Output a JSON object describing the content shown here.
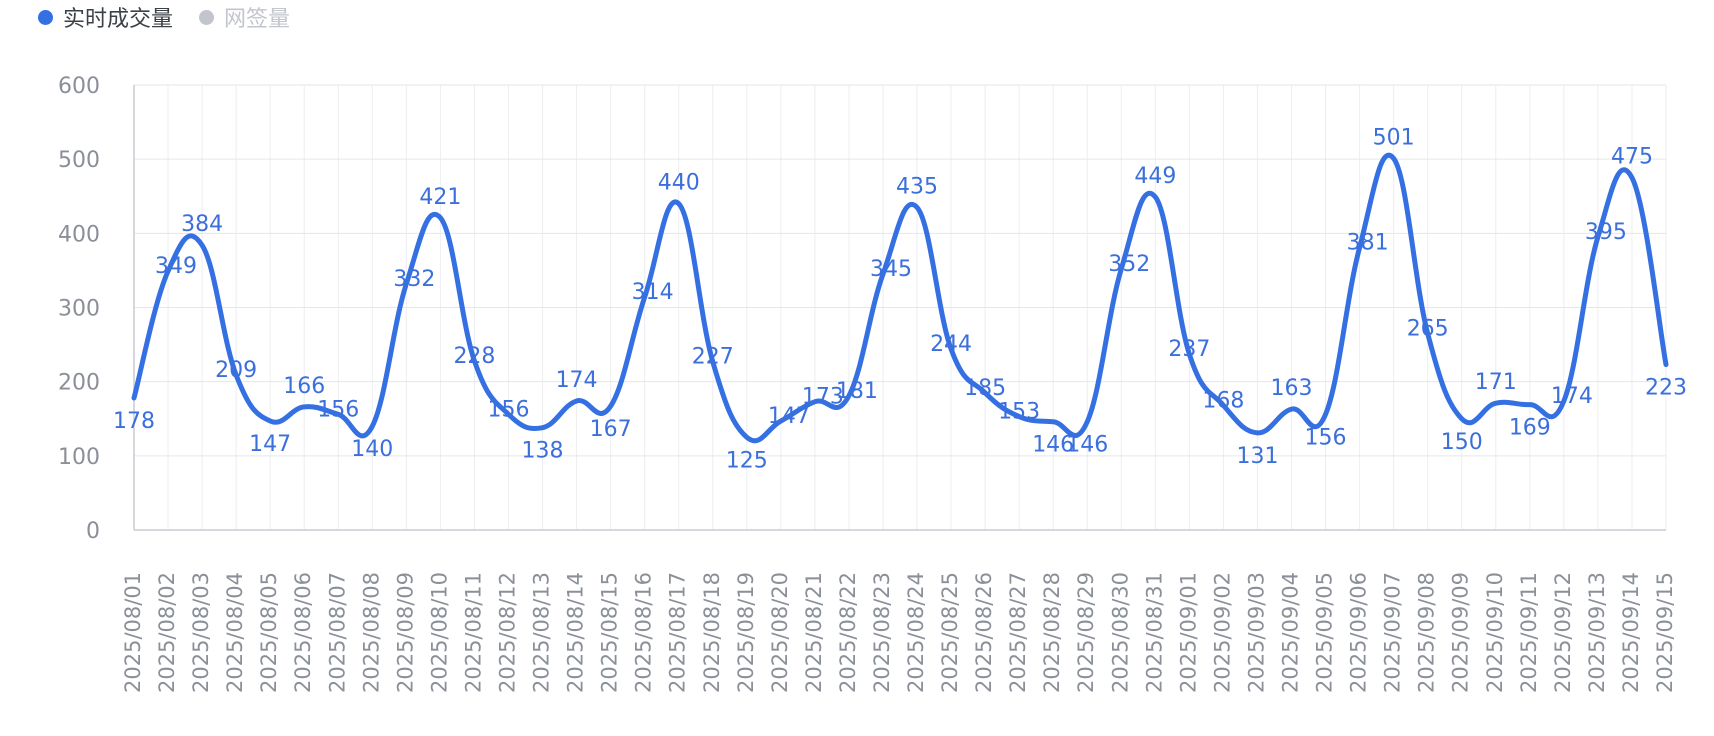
{
  "legend": {
    "items": [
      {
        "label": "实时成交量",
        "color": "#3570e3",
        "active": true
      },
      {
        "label": "网签量",
        "color": "#c2c5cc",
        "active": false
      }
    ]
  },
  "chart_data": {
    "type": "line",
    "smooth": true,
    "grid": true,
    "legend_position": "top-left",
    "color": "#3570e3",
    "ylim": [
      0,
      600
    ],
    "yticks": [
      0,
      100,
      200,
      300,
      400,
      500,
      600
    ],
    "categories": [
      "2025/08/01",
      "2025/08/02",
      "2025/08/03",
      "2025/08/04",
      "2025/08/05",
      "2025/08/06",
      "2025/08/07",
      "2025/08/08",
      "2025/08/09",
      "2025/08/10",
      "2025/08/11",
      "2025/08/12",
      "2025/08/13",
      "2025/08/14",
      "2025/08/15",
      "2025/08/16",
      "2025/08/17",
      "2025/08/18",
      "2025/08/19",
      "2025/08/20",
      "2025/08/21",
      "2025/08/22",
      "2025/08/23",
      "2025/08/24",
      "2025/08/25",
      "2025/08/26",
      "2025/08/27",
      "2025/08/28",
      "2025/08/29",
      "2025/08/30",
      "2025/08/31",
      "2025/09/01",
      "2025/09/02",
      "2025/09/03",
      "2025/09/04",
      "2025/09/05",
      "2025/09/06",
      "2025/09/07",
      "2025/09/08",
      "2025/09/09",
      "2025/09/10",
      "2025/09/11",
      "2025/09/12",
      "2025/09/13",
      "2025/09/14",
      "2025/09/15"
    ],
    "series": [
      {
        "name": "实时成交量",
        "values": [
          178,
          349,
          384,
          209,
          147,
          166,
          156,
          140,
          332,
          421,
          228,
          156,
          138,
          174,
          167,
          314,
          440,
          227,
          125,
          147,
          173,
          181,
          345,
          435,
          244,
          185,
          153,
          146,
          146,
          352,
          449,
          237,
          168,
          131,
          163,
          156,
          381,
          501,
          265,
          150,
          171,
          169,
          174,
          395,
          475,
          223
        ]
      }
    ]
  }
}
